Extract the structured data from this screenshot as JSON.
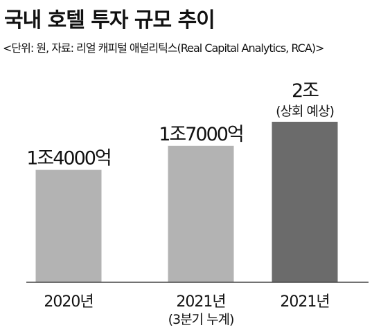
{
  "chart_data": {
    "type": "bar",
    "title": "국내 호텔 투자 규모 추이",
    "subtitle": "<단위: 원, 자료: 리얼 캐피털 애널리틱스(Real Capital Analytics, RCA)>",
    "categories": [
      "2020년",
      "2021년",
      "2021년"
    ],
    "category_notes": [
      "",
      "(3분기 누계)",
      ""
    ],
    "values": [
      14000,
      17000,
      20000
    ],
    "value_labels": [
      "1조4000억",
      "1조7000억",
      "2조"
    ],
    "value_notes": [
      "",
      "",
      "(상회 예상)"
    ],
    "unit": "억원",
    "ylim": [
      0,
      20000
    ],
    "grid": false,
    "bar_colors": [
      "#b3b3b3",
      "#b3b3b3",
      "#6b6b6b"
    ],
    "axis_color": "#444444"
  }
}
